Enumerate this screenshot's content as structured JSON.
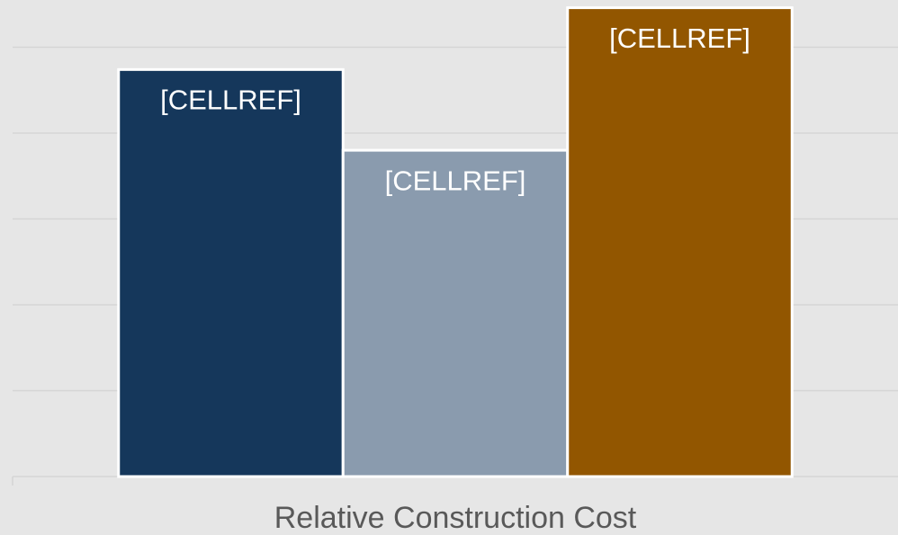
{
  "chart_data": {
    "type": "bar",
    "categories": [
      "Relative Construction Cost"
    ],
    "series": [
      {
        "color": "#15375b",
        "values": [
          4.74
        ],
        "value_labels": [
          "[CELLREF]"
        ]
      },
      {
        "color": "#8a9bae",
        "values": [
          3.8
        ],
        "value_labels": [
          "[CELLREF]"
        ]
      },
      {
        "color": "#925600",
        "values": [
          5.46
        ],
        "value_labels": [
          "[CELLREF]"
        ]
      }
    ],
    "ylim": [
      0,
      5.55
    ],
    "yticks": [
      0,
      1,
      2,
      3,
      4,
      5
    ],
    "grid": true
  }
}
